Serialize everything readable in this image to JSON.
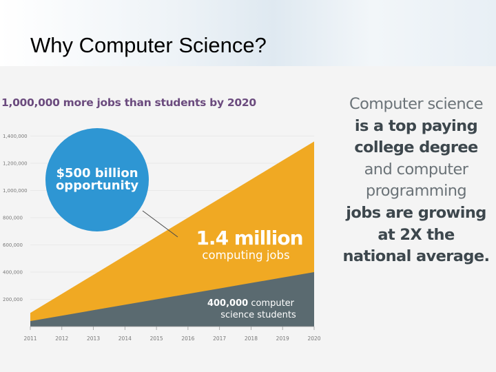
{
  "slide": {
    "title": "Why Computer Science?"
  },
  "headline": "1,000,000 more jobs than students by 2020",
  "side_text": [
    {
      "text": "Computer science",
      "bold": false
    },
    {
      "text": "is a top paying",
      "bold": true
    },
    {
      "text": "college degree",
      "bold": true
    },
    {
      "text": "and computer",
      "bold": false
    },
    {
      "text": "programming",
      "bold": false
    },
    {
      "text": "jobs are growing",
      "bold": true
    },
    {
      "text": "at 2X the",
      "bold": true
    },
    {
      "text": "national average.",
      "bold": true
    }
  ],
  "callouts": {
    "bubble_line1": "$500 billion",
    "bubble_line2": "opportunity",
    "jobs_big": "1.4 million",
    "jobs_small": "computing jobs",
    "students_value": "400,000",
    "students_rest": " computer",
    "students_line2": "science students"
  },
  "colors": {
    "jobs": "#f0a923",
    "students": "#5a6a70",
    "bubble": "#2e96d3",
    "headline": "#6b4b7e",
    "axis_text": "#777777"
  },
  "chart_data": {
    "type": "area",
    "title": "1,000,000 more jobs than students by 2020",
    "x": [
      "2011",
      "2012",
      "2013",
      "2014",
      "2015",
      "2016",
      "2017",
      "2018",
      "2019",
      "2020"
    ],
    "ylim": [
      0,
      1400000
    ],
    "yticks": [
      {
        "value": 1400000,
        "label": "1,400,000"
      },
      {
        "value": 1200000,
        "label": "1,200,000"
      },
      {
        "value": 1000000,
        "label": "1,000,000"
      },
      {
        "value": 800000,
        "label": "800,000"
      },
      {
        "value": 600000,
        "label": "600,000"
      },
      {
        "value": 400000,
        "label": "400,000"
      },
      {
        "value": 200000,
        "label": "200,000"
      }
    ],
    "series": [
      {
        "name": "computing jobs",
        "values": [
          100000,
          240000,
          380000,
          520000,
          660000,
          800000,
          940000,
          1080000,
          1220000,
          1360000
        ]
      },
      {
        "name": "computer science students",
        "values": [
          40000,
          80000,
          120000,
          160000,
          200000,
          240000,
          280000,
          320000,
          360000,
          400000
        ]
      }
    ],
    "annotations": [
      "$500 billion opportunity",
      "1.4 million computing jobs",
      "400,000 computer science students"
    ]
  }
}
